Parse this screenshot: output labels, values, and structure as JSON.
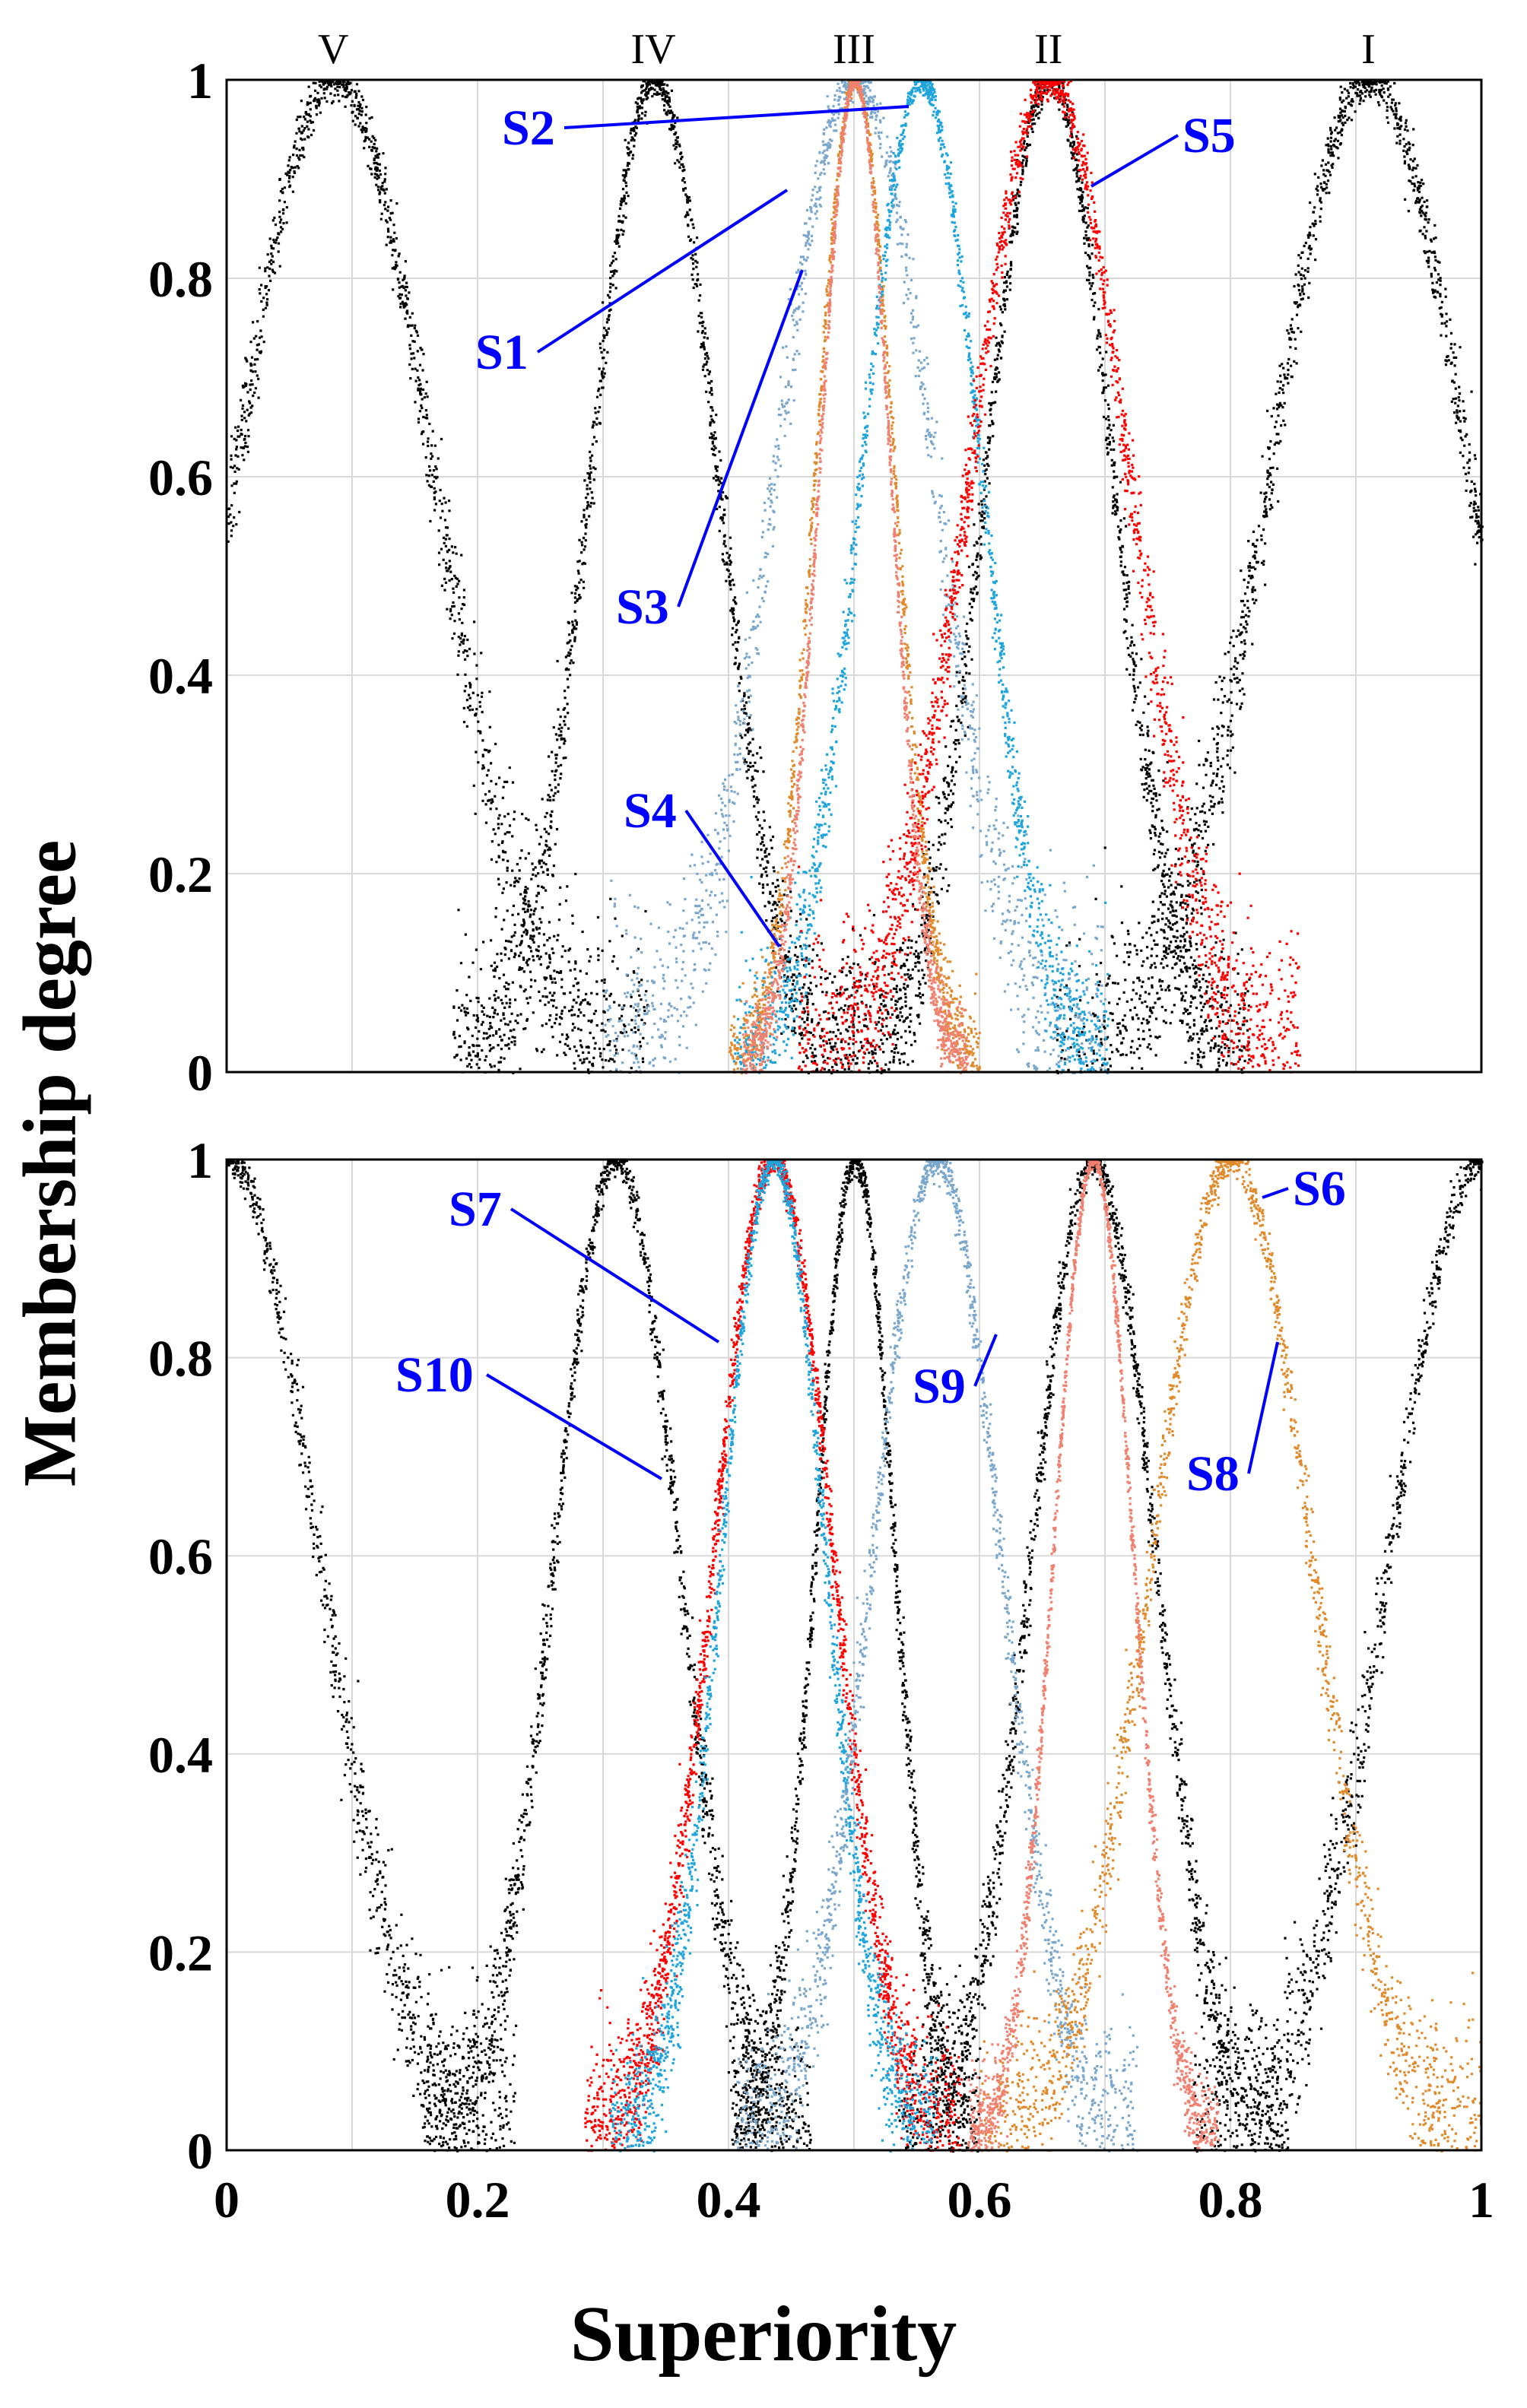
{
  "chart_data": [
    {
      "type": "scatter",
      "title": "",
      "xlabel": "Superiority",
      "ylabel": "Membership degree",
      "xlim": [
        0,
        1
      ],
      "ylim": [
        0,
        1
      ],
      "xticks": [
        "0",
        "0.2",
        "0.4",
        "0.6",
        "0.8",
        "1"
      ],
      "yticks": [
        "0",
        "0.2",
        "0.4",
        "0.6",
        "0.8",
        "1"
      ],
      "grid": true,
      "grade_labels": [
        {
          "label": "V",
          "x": 0.085
        },
        {
          "label": "IV",
          "x": 0.34
        },
        {
          "label": "III",
          "x": 0.5
        },
        {
          "label": "II",
          "x": 0.655
        },
        {
          "label": "I",
          "x": 0.91
        }
      ],
      "series": [
        {
          "name": "Grade V",
          "color": "#000000",
          "center": 0.085,
          "halfwidth": 0.25,
          "spread": 0.028,
          "points": 2000
        },
        {
          "name": "Grade IV",
          "color": "#000000",
          "center": 0.34,
          "halfwidth": 0.16,
          "spread": 0.022,
          "points": 1600
        },
        {
          "name": "Grade II",
          "color": "#000000",
          "center": 0.655,
          "halfwidth": 0.16,
          "spread": 0.022,
          "points": 1600
        },
        {
          "name": "Grade I",
          "color": "#000000",
          "center": 0.91,
          "halfwidth": 0.25,
          "spread": 0.028,
          "points": 2000
        },
        {
          "name": "S1",
          "color": "#7ba7cc",
          "center": 0.5,
          "halfwidth": 0.2,
          "spread": 0.03,
          "points": 1500
        },
        {
          "name": "S3",
          "color": "#e08a2c",
          "center": 0.5,
          "halfwidth": 0.1,
          "spread": 0.012,
          "points": 1300
        },
        {
          "name": "S2",
          "color": "#1fa5dc",
          "center": 0.553,
          "halfwidth": 0.15,
          "spread": 0.02,
          "points": 1600
        },
        {
          "name": "S5",
          "color": "#ff0000",
          "center": 0.655,
          "halfwidth": 0.2,
          "spread": 0.026,
          "points": 2200
        },
        {
          "name": "S4",
          "color": "#f08070",
          "center": 0.5,
          "halfwidth": 0.09,
          "spread": 0.01,
          "points": 1500
        }
      ],
      "annotations": [
        {
          "text": "S2",
          "at": [
            0.555,
            1.0
          ]
        },
        {
          "text": "S1",
          "at": [
            0.45,
            0.88
          ]
        },
        {
          "text": "S3",
          "at": [
            0.465,
            0.78
          ]
        },
        {
          "text": "S4",
          "at": [
            0.445,
            0.13
          ]
        },
        {
          "text": "S5",
          "at": [
            0.69,
            0.91
          ]
        }
      ]
    },
    {
      "type": "scatter",
      "title": "",
      "xlabel": "Superiority",
      "ylabel": "Membership degree",
      "xlim": [
        0,
        1
      ],
      "ylim": [
        0,
        1
      ],
      "xticks": [
        "0",
        "0.2",
        "0.4",
        "0.6",
        "0.8",
        "1"
      ],
      "yticks": [
        "0",
        "0.2",
        "0.4",
        "0.6",
        "0.8",
        "1"
      ],
      "grid": true,
      "series": [
        {
          "name": "Grade V",
          "color": "#000000",
          "center": 0.0,
          "halfwidth": 0.23,
          "spread": 0.025,
          "points": 1700
        },
        {
          "name": "Grade IV",
          "color": "#000000",
          "center": 0.31,
          "halfwidth": 0.155,
          "spread": 0.022,
          "points": 1600
        },
        {
          "name": "Grade III",
          "color": "#000000",
          "center": 0.5,
          "halfwidth": 0.1,
          "spread": 0.02,
          "points": 1400
        },
        {
          "name": "Grade II",
          "color": "#000000",
          "center": 0.69,
          "halfwidth": 0.155,
          "spread": 0.022,
          "points": 1600
        },
        {
          "name": "Grade I",
          "color": "#000000",
          "center": 1.0,
          "halfwidth": 0.23,
          "spread": 0.025,
          "points": 1700
        },
        {
          "name": "S10",
          "color": "#ff0000",
          "center": 0.435,
          "halfwidth": 0.15,
          "spread": 0.02,
          "points": 2200
        },
        {
          "name": "S7",
          "color": "#1fa5dc",
          "center": 0.435,
          "halfwidth": 0.13,
          "spread": 0.02,
          "points": 1700
        },
        {
          "name": "S6",
          "color": "#7ba7cc",
          "center": 0.565,
          "halfwidth": 0.16,
          "spread": 0.022,
          "points": 1600
        },
        {
          "name": "S8",
          "color": "#e08a2c",
          "center": 0.8,
          "halfwidth": 0.2,
          "spread": 0.022,
          "points": 1800
        },
        {
          "name": "S9",
          "color": "#f08070",
          "center": 0.69,
          "halfwidth": 0.1,
          "spread": 0.012,
          "points": 1600
        }
      ],
      "annotations": [
        {
          "text": "S7",
          "at": [
            0.395,
            0.82
          ]
        },
        {
          "text": "S10",
          "at": [
            0.37,
            0.71
          ]
        },
        {
          "text": "S6",
          "at": [
            0.61,
            0.87
          ]
        },
        {
          "text": "S9",
          "at": [
            0.62,
            0.84
          ]
        },
        {
          "text": "S8",
          "at": [
            0.845,
            0.84
          ]
        }
      ]
    }
  ],
  "colors": {
    "annotation": "#0000ff",
    "grid": "#d9d9d9",
    "axis": "#000000"
  }
}
